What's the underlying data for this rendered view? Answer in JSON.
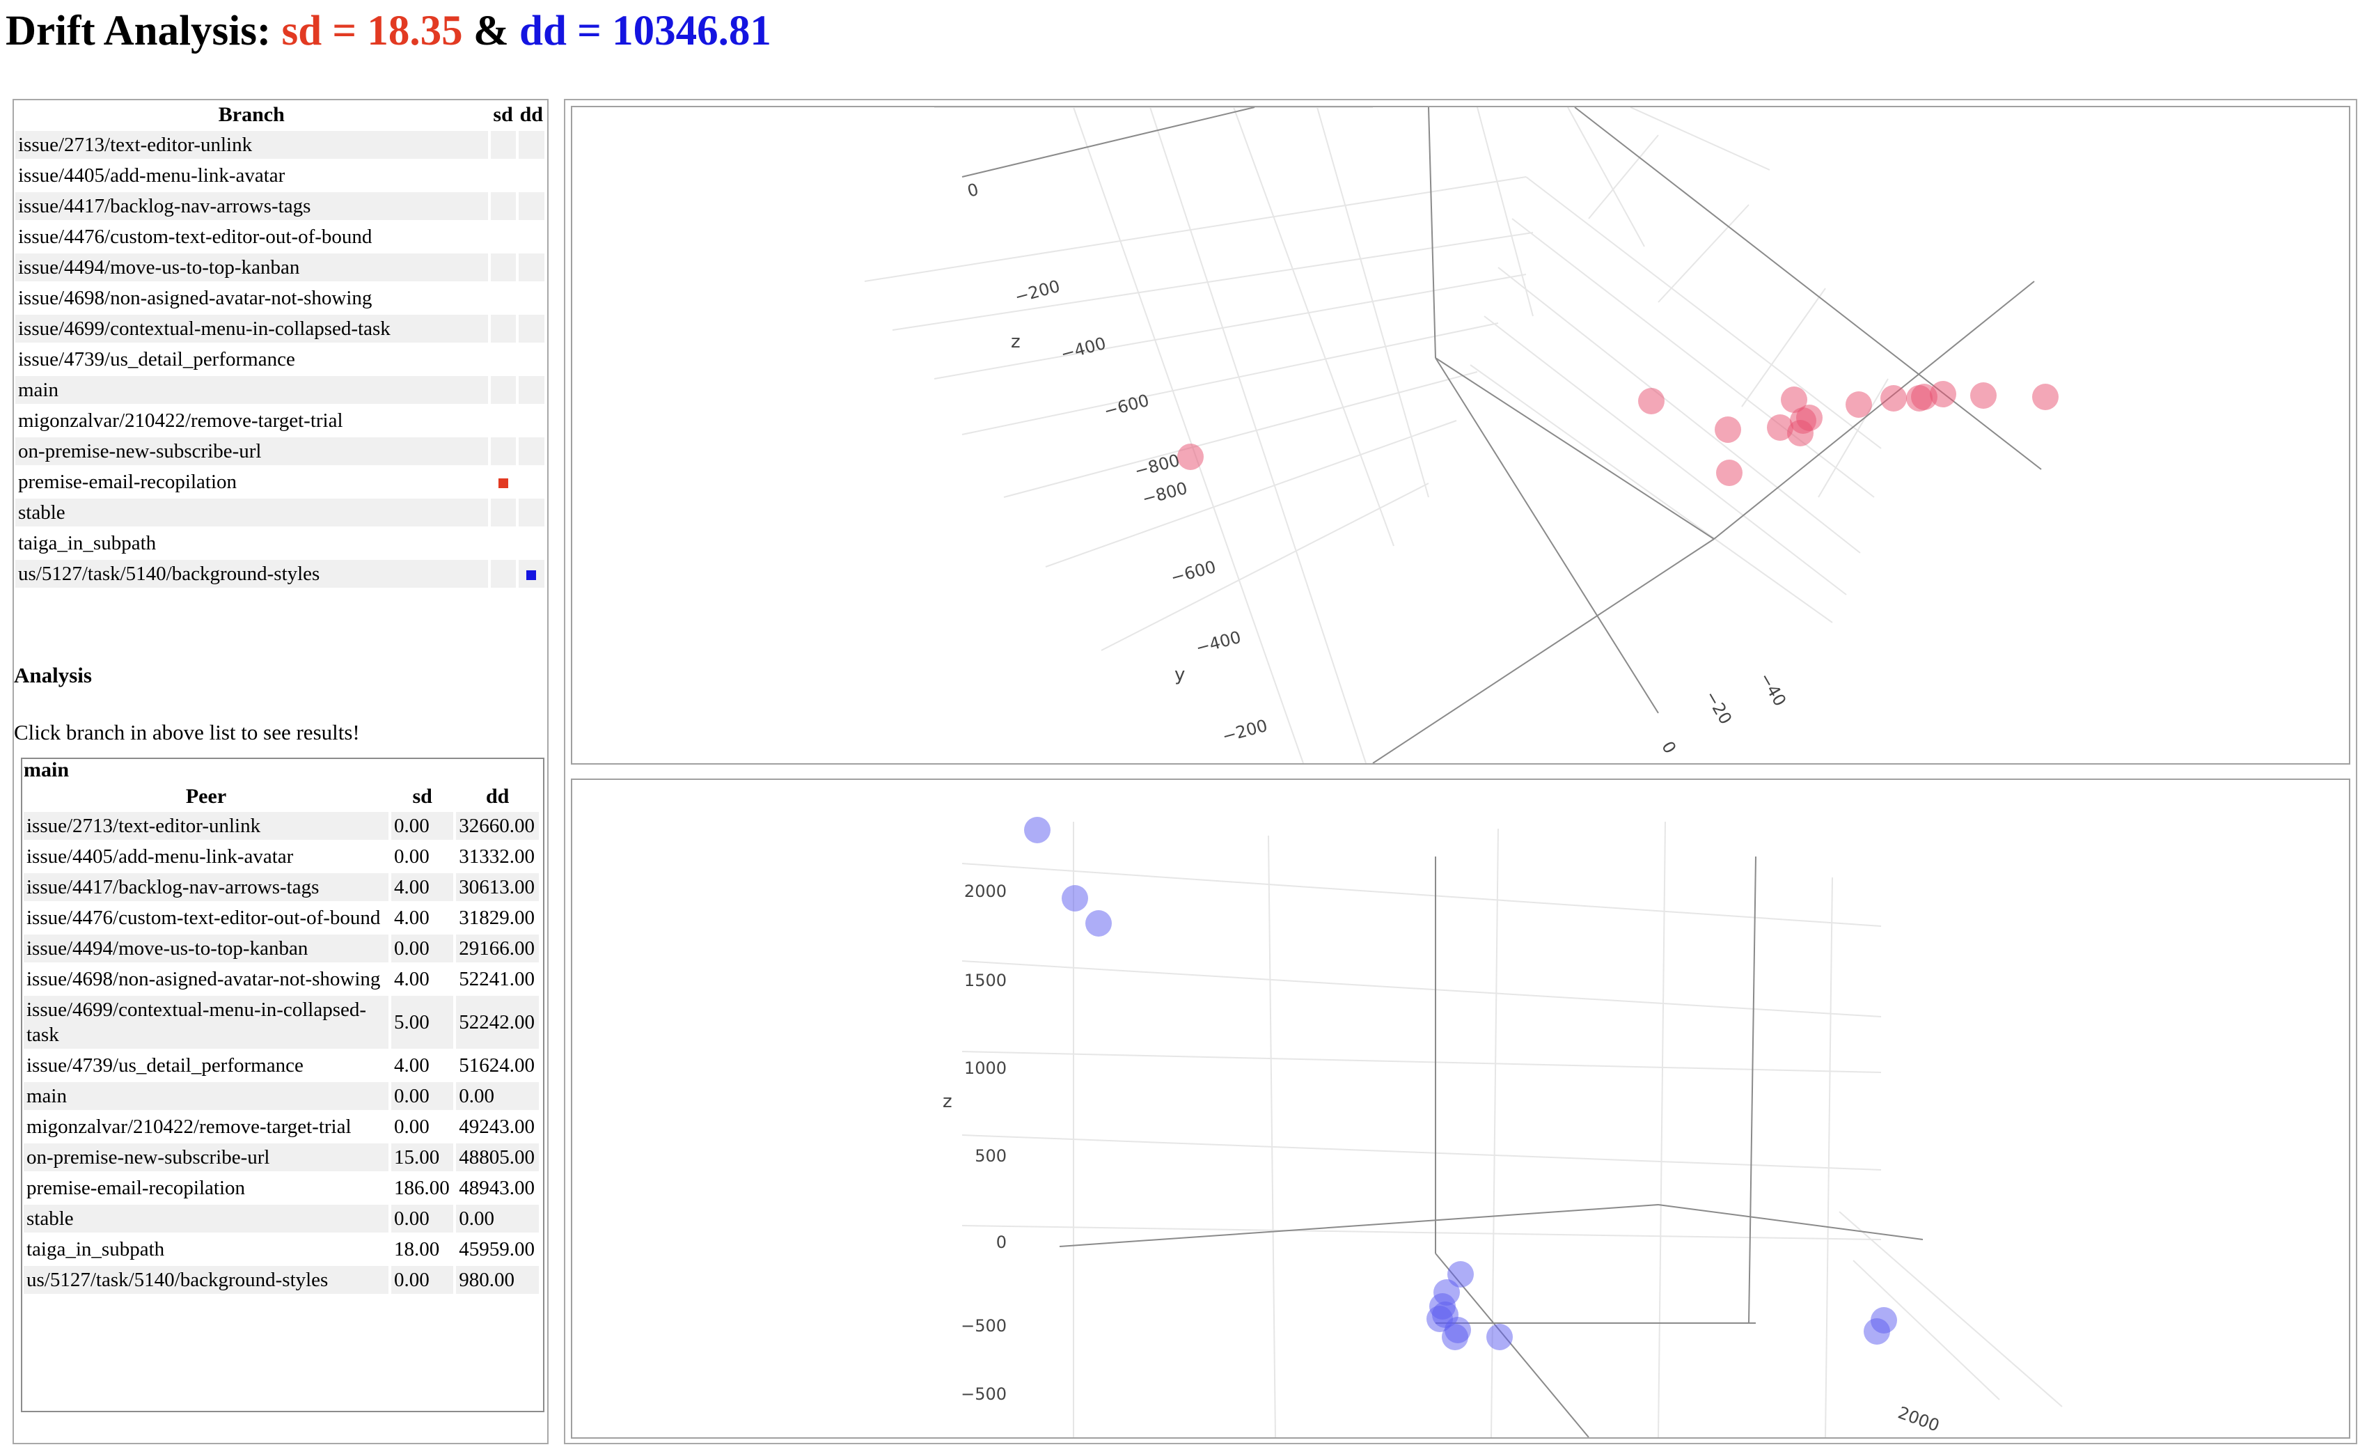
{
  "title": {
    "prefix": "Drift Analysis: ",
    "sd_text": "sd = 18.35",
    "joiner": " & ",
    "dd_text": "dd = 10346.81"
  },
  "colors": {
    "sd_accent": "#e23a22",
    "dd_accent": "#1414e0",
    "row_stripe": "#f0f0f0"
  },
  "branch_table": {
    "headers": {
      "branch": "Branch",
      "sd": "sd",
      "dd": "dd"
    },
    "rows": [
      {
        "name": "issue/2713/text-editor-unlink",
        "sd": false,
        "dd": false
      },
      {
        "name": "issue/4405/add-menu-link-avatar",
        "sd": false,
        "dd": false
      },
      {
        "name": "issue/4417/backlog-nav-arrows-tags",
        "sd": false,
        "dd": false
      },
      {
        "name": "issue/4476/custom-text-editor-out-of-bound",
        "sd": false,
        "dd": false
      },
      {
        "name": "issue/4494/move-us-to-top-kanban",
        "sd": false,
        "dd": false
      },
      {
        "name": "issue/4698/non-asigned-avatar-not-showing",
        "sd": false,
        "dd": false
      },
      {
        "name": "issue/4699/contextual-menu-in-collapsed-task",
        "sd": false,
        "dd": false
      },
      {
        "name": "issue/4739/us_detail_performance",
        "sd": false,
        "dd": false
      },
      {
        "name": "main",
        "sd": false,
        "dd": false
      },
      {
        "name": "migonzalvar/210422/remove-target-trial",
        "sd": false,
        "dd": false
      },
      {
        "name": "on-premise-new-subscribe-url",
        "sd": false,
        "dd": false
      },
      {
        "name": "premise-email-recopilation",
        "sd": true,
        "dd": false
      },
      {
        "name": "stable",
        "sd": false,
        "dd": false
      },
      {
        "name": "taiga_in_subpath",
        "sd": false,
        "dd": false
      },
      {
        "name": "us/5127/task/5140/background-styles",
        "sd": false,
        "dd": true
      }
    ]
  },
  "analysis": {
    "heading": "Analysis",
    "hint": "Click branch in above list to see results!",
    "selected_branch": "main",
    "headers": {
      "peer": "Peer",
      "sd": "sd",
      "dd": "dd"
    },
    "rows": [
      {
        "peer": "issue/2713/text-editor-unlink",
        "sd": "0.00",
        "dd": "32660.00"
      },
      {
        "peer": "issue/4405/add-menu-link-avatar",
        "sd": "0.00",
        "dd": "31332.00"
      },
      {
        "peer": "issue/4417/backlog-nav-arrows-tags",
        "sd": "4.00",
        "dd": "30613.00"
      },
      {
        "peer": "issue/4476/custom-text-editor-out-of-bound",
        "sd": "4.00",
        "dd": "31829.00"
      },
      {
        "peer": "issue/4494/move-us-to-top-kanban",
        "sd": "0.00",
        "dd": "29166.00"
      },
      {
        "peer": "issue/4698/non-asigned-avatar-not-showing",
        "sd": "4.00",
        "dd": "52241.00"
      },
      {
        "peer": "issue/4699/contextual-menu-in-collapsed-task",
        "sd": "5.00",
        "dd": "52242.00"
      },
      {
        "peer": "issue/4739/us_detail_performance",
        "sd": "4.00",
        "dd": "51624.00"
      },
      {
        "peer": "main",
        "sd": "0.00",
        "dd": "0.00"
      },
      {
        "peer": "migonzalvar/210422/remove-target-trial",
        "sd": "0.00",
        "dd": "49243.00"
      },
      {
        "peer": "on-premise-new-subscribe-url",
        "sd": "15.00",
        "dd": "48805.00"
      },
      {
        "peer": "premise-email-recopilation",
        "sd": "186.00",
        "dd": "48943.00"
      },
      {
        "peer": "stable",
        "sd": "0.00",
        "dd": "0.00"
      },
      {
        "peer": "taiga_in_subpath",
        "sd": "18.00",
        "dd": "45959.00"
      },
      {
        "peer": "us/5127/task/5140/background-styles",
        "sd": "0.00",
        "dd": "980.00"
      }
    ]
  },
  "plots": {
    "sd": {
      "z_axis_label": "z",
      "y_axis_label": "y",
      "z_ticks": [
        "0",
        "−200",
        "−400",
        "−600",
        "−800"
      ],
      "y_ticks": [
        "−800",
        "−600",
        "−400",
        "−200"
      ],
      "x_ticks": [
        "0",
        "−20",
        "−40"
      ],
      "marker_color": "#e8506f"
    },
    "dd": {
      "z_axis_label": "z",
      "z_ticks": [
        "2000",
        "1500",
        "1000",
        "500",
        "0",
        "−500",
        "−500"
      ],
      "x_ticks": [
        "2000"
      ],
      "marker_color": "#5b5bf0"
    }
  }
}
